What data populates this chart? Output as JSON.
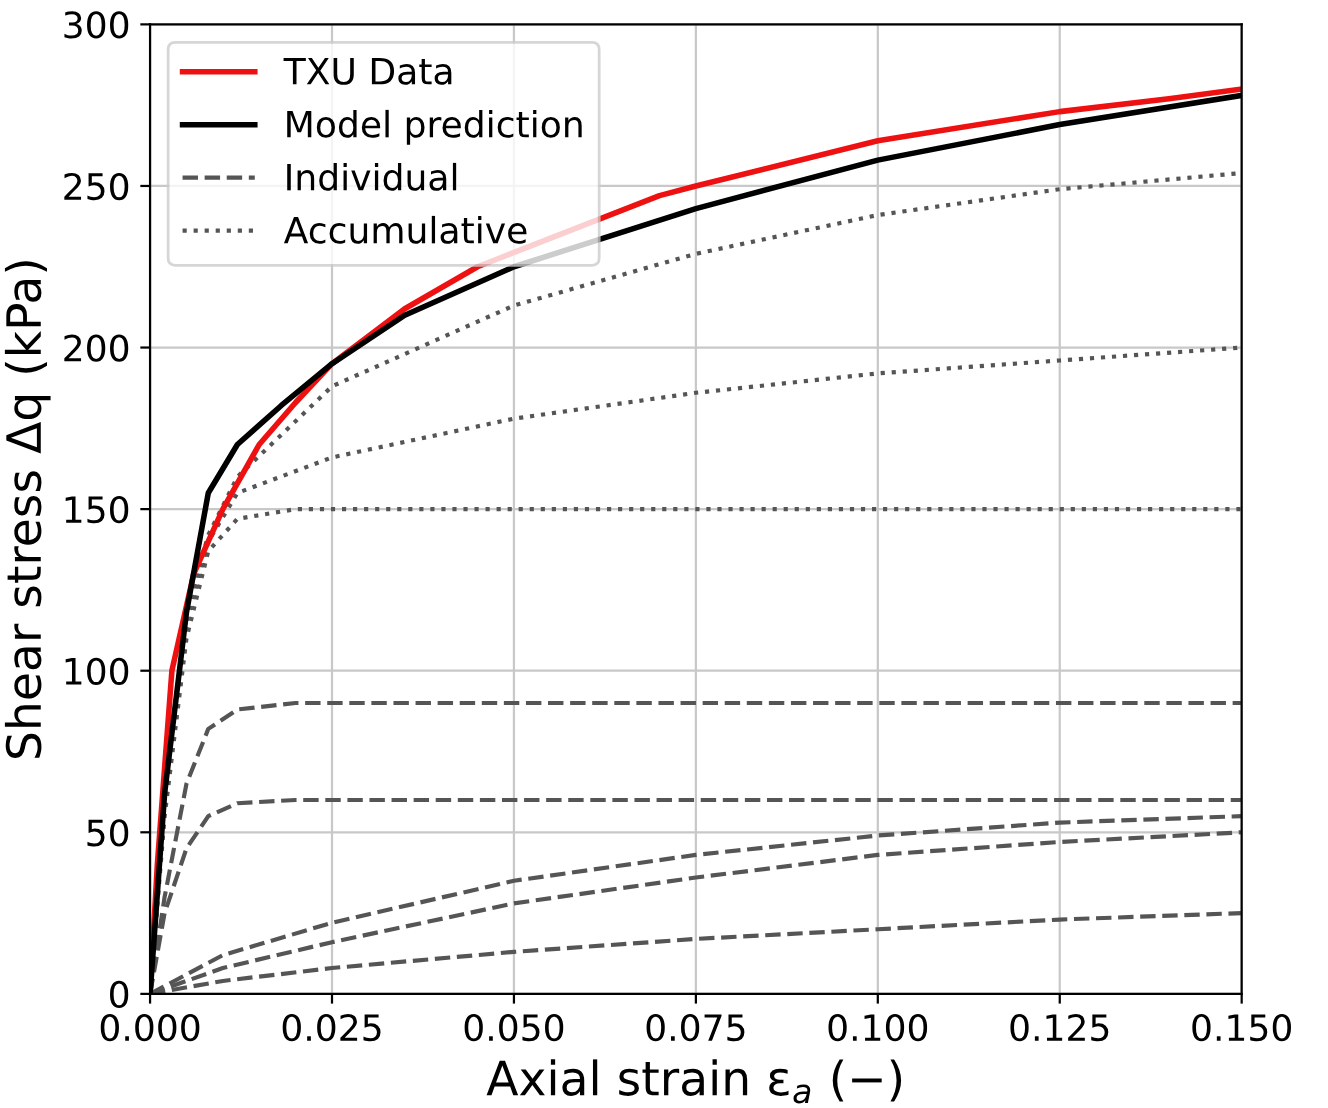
{
  "chart_data": {
    "type": "line",
    "xlabel": "Axial strain ε$_{a}$ (−)",
    "ylabel": "Shear stress Δq (kPa)",
    "xlim": [
      0,
      0.15
    ],
    "ylim": [
      0,
      300
    ],
    "xticks": [
      {
        "value": 0,
        "label": "0.000"
      },
      {
        "value": 0.025,
        "label": "0.025"
      },
      {
        "value": 0.05,
        "label": "0.050"
      },
      {
        "value": 0.075,
        "label": "0.075"
      },
      {
        "value": 0.1,
        "label": "0.100"
      },
      {
        "value": 0.125,
        "label": "0.125"
      },
      {
        "value": 0.15,
        "label": "0.150"
      }
    ],
    "yticks": [
      0,
      50,
      100,
      150,
      200,
      250,
      300
    ],
    "grid": true,
    "legend": "top left",
    "series": [
      {
        "name": "Individual",
        "color": "#555555",
        "line_style": "dashed",
        "x": [
          0,
          0.002,
          0.005,
          0.008,
          0.012,
          0.02,
          0.03,
          0.15
        ],
        "values": [
          0,
          30,
          65,
          82,
          88,
          90,
          90,
          90
        ]
      },
      {
        "color": "#555555",
        "line_style": "dashed",
        "x": [
          0,
          0.002,
          0.005,
          0.008,
          0.012,
          0.02,
          0.15
        ],
        "values": [
          0,
          25,
          45,
          55,
          59,
          60,
          60
        ]
      },
      {
        "color": "#555555",
        "line_style": "dashed",
        "x": [
          0,
          0.01,
          0.025,
          0.05,
          0.075,
          0.1,
          0.125,
          0.15
        ],
        "values": [
          0,
          12,
          22,
          35,
          43,
          49,
          53,
          55
        ]
      },
      {
        "color": "#555555",
        "line_style": "dashed",
        "x": [
          0,
          0.01,
          0.025,
          0.05,
          0.075,
          0.1,
          0.125,
          0.15
        ],
        "values": [
          0,
          8,
          16,
          28,
          36,
          43,
          47,
          50
        ]
      },
      {
        "color": "#555555",
        "line_style": "dashed",
        "x": [
          0,
          0.01,
          0.025,
          0.05,
          0.075,
          0.1,
          0.125,
          0.15
        ],
        "values": [
          0,
          4,
          8,
          13,
          17,
          20,
          23,
          25
        ]
      },
      {
        "name": "Accumulative",
        "color": "#555555",
        "line_style": "dotted",
        "x": [
          0,
          0.002,
          0.005,
          0.008,
          0.012,
          0.02,
          0.15
        ],
        "values": [
          0,
          55,
          110,
          137,
          147,
          150,
          150
        ]
      },
      {
        "color": "#555555",
        "line_style": "dotted",
        "x": [
          0,
          0.002,
          0.005,
          0.008,
          0.012,
          0.025,
          0.05,
          0.075,
          0.1,
          0.125,
          0.15
        ],
        "values": [
          0,
          58,
          115,
          140,
          155,
          166,
          178,
          186,
          192,
          196,
          200
        ]
      },
      {
        "color": "#555555",
        "line_style": "dotted",
        "x": [
          0,
          0.002,
          0.005,
          0.008,
          0.012,
          0.025,
          0.05,
          0.075,
          0.1,
          0.125,
          0.15
        ],
        "values": [
          0,
          60,
          118,
          142,
          160,
          188,
          213,
          229,
          241,
          249,
          254
        ]
      },
      {
        "name": "TXU Data",
        "color": "#ee1111",
        "line_style": "solid",
        "x": [
          0,
          0.001,
          0.003,
          0.006,
          0.01,
          0.015,
          0.02,
          0.025,
          0.035,
          0.045,
          0.07,
          0.075,
          0.1,
          0.125,
          0.14,
          0.15
        ],
        "values": [
          0,
          40,
          100,
          130,
          150,
          170,
          183,
          195,
          212,
          225,
          247,
          250,
          264,
          273,
          277,
          280
        ]
      },
      {
        "name": "Model prediction",
        "color": "#000000",
        "line_style": "solid",
        "x": [
          0,
          0.002,
          0.005,
          0.008,
          0.012,
          0.018,
          0.025,
          0.035,
          0.05,
          0.075,
          0.1,
          0.125,
          0.15
        ],
        "values": [
          0,
          62,
          118,
          155,
          170,
          182,
          195,
          210,
          225,
          243,
          258,
          269,
          278
        ]
      }
    ]
  }
}
